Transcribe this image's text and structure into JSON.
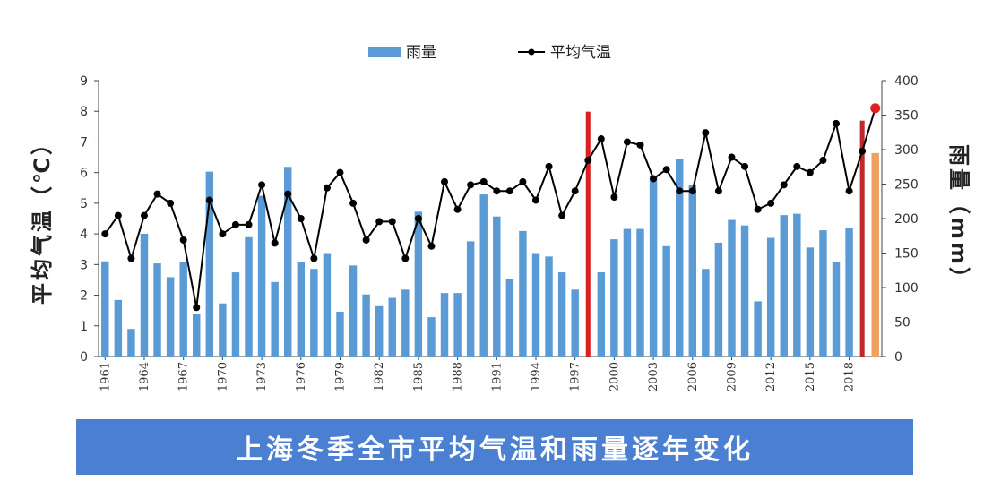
{
  "chart_data": {
    "type": "bar+line",
    "title": "上海冬季全市平均气温和雨量逐年变化",
    "x": [
      1961,
      1962,
      1963,
      1964,
      1965,
      1966,
      1967,
      1968,
      1969,
      1970,
      1971,
      1972,
      1973,
      1974,
      1975,
      1976,
      1977,
      1978,
      1979,
      1980,
      1981,
      1982,
      1983,
      1984,
      1985,
      1986,
      1987,
      1988,
      1989,
      1990,
      1991,
      1992,
      1993,
      1994,
      1995,
      1996,
      1997,
      1998,
      1999,
      2000,
      2001,
      2002,
      2003,
      2004,
      2005,
      2006,
      2007,
      2008,
      2009,
      2010,
      2011,
      2012,
      2013,
      2014,
      2015,
      2016,
      2017,
      2018,
      2019,
      2020
    ],
    "xtick_labels": [
      "1961",
      "1964",
      "1967",
      "1970",
      "1973",
      "1976",
      "1979",
      "1982",
      "1985",
      "1988",
      "1991",
      "1994",
      "1997",
      "2000",
      "2003",
      "2006",
      "2009",
      "2012",
      "2015",
      "2018"
    ],
    "series": [
      {
        "name": "雨量",
        "axis": "right",
        "kind": "bar",
        "color": "#5b9bd5",
        "values": [
          138,
          82,
          40,
          178,
          135,
          115,
          137,
          62,
          268,
          77,
          122,
          173,
          233,
          108,
          275,
          137,
          127,
          150,
          65,
          132,
          90,
          73,
          85,
          97,
          210,
          57,
          92,
          92,
          167,
          235,
          203,
          113,
          182,
          150,
          145,
          122,
          97,
          355,
          122,
          170,
          185,
          185,
          262,
          160,
          287,
          248,
          127,
          165,
          198,
          190,
          80,
          172,
          205,
          207,
          158,
          183,
          137,
          186,
          342,
          295
        ],
        "highlight": [
          {
            "year": 1998,
            "color": "#d82020"
          },
          {
            "year": 2019,
            "color": "#c0282a"
          },
          {
            "year": 2020,
            "color": "#f0a060"
          }
        ]
      },
      {
        "name": "平均气温",
        "axis": "left",
        "kind": "line",
        "color": "#000000",
        "values": [
          4.0,
          4.6,
          3.2,
          4.6,
          5.3,
          5.0,
          3.8,
          1.6,
          5.1,
          4.0,
          4.3,
          4.3,
          5.6,
          3.7,
          5.3,
          4.5,
          3.2,
          5.5,
          6.0,
          5.0,
          3.8,
          4.4,
          4.4,
          3.2,
          4.5,
          3.6,
          5.7,
          4.8,
          5.6,
          5.7,
          5.4,
          5.4,
          5.7,
          5.1,
          6.2,
          4.6,
          5.4,
          6.4,
          7.1,
          5.2,
          7.0,
          6.9,
          5.8,
          6.1,
          5.4,
          5.4,
          7.3,
          5.4,
          6.5,
          6.2,
          4.8,
          5.0,
          5.6,
          6.2,
          6.0,
          6.4,
          7.6,
          5.4,
          6.7,
          8.1
        ],
        "highlight": [
          {
            "year": 2020,
            "color": "#e02020"
          }
        ]
      }
    ],
    "y_left": {
      "label": "平均气温（℃）",
      "range": [
        0,
        9
      ],
      "ticks": [
        "0",
        "1",
        "2",
        "3",
        "4",
        "5",
        "6",
        "7",
        "8",
        "9"
      ]
    },
    "y_right": {
      "label": "雨量（mm）",
      "range": [
        0,
        400
      ],
      "ticks": [
        "0",
        "50",
        "100",
        "150",
        "200",
        "250",
        "300",
        "350",
        "400"
      ]
    },
    "legend": {
      "placement": "top-center",
      "items": [
        "雨量",
        "平均气温"
      ]
    },
    "grid": false
  },
  "banner_text": "上海冬季全市平均气温和雨量逐年变化"
}
